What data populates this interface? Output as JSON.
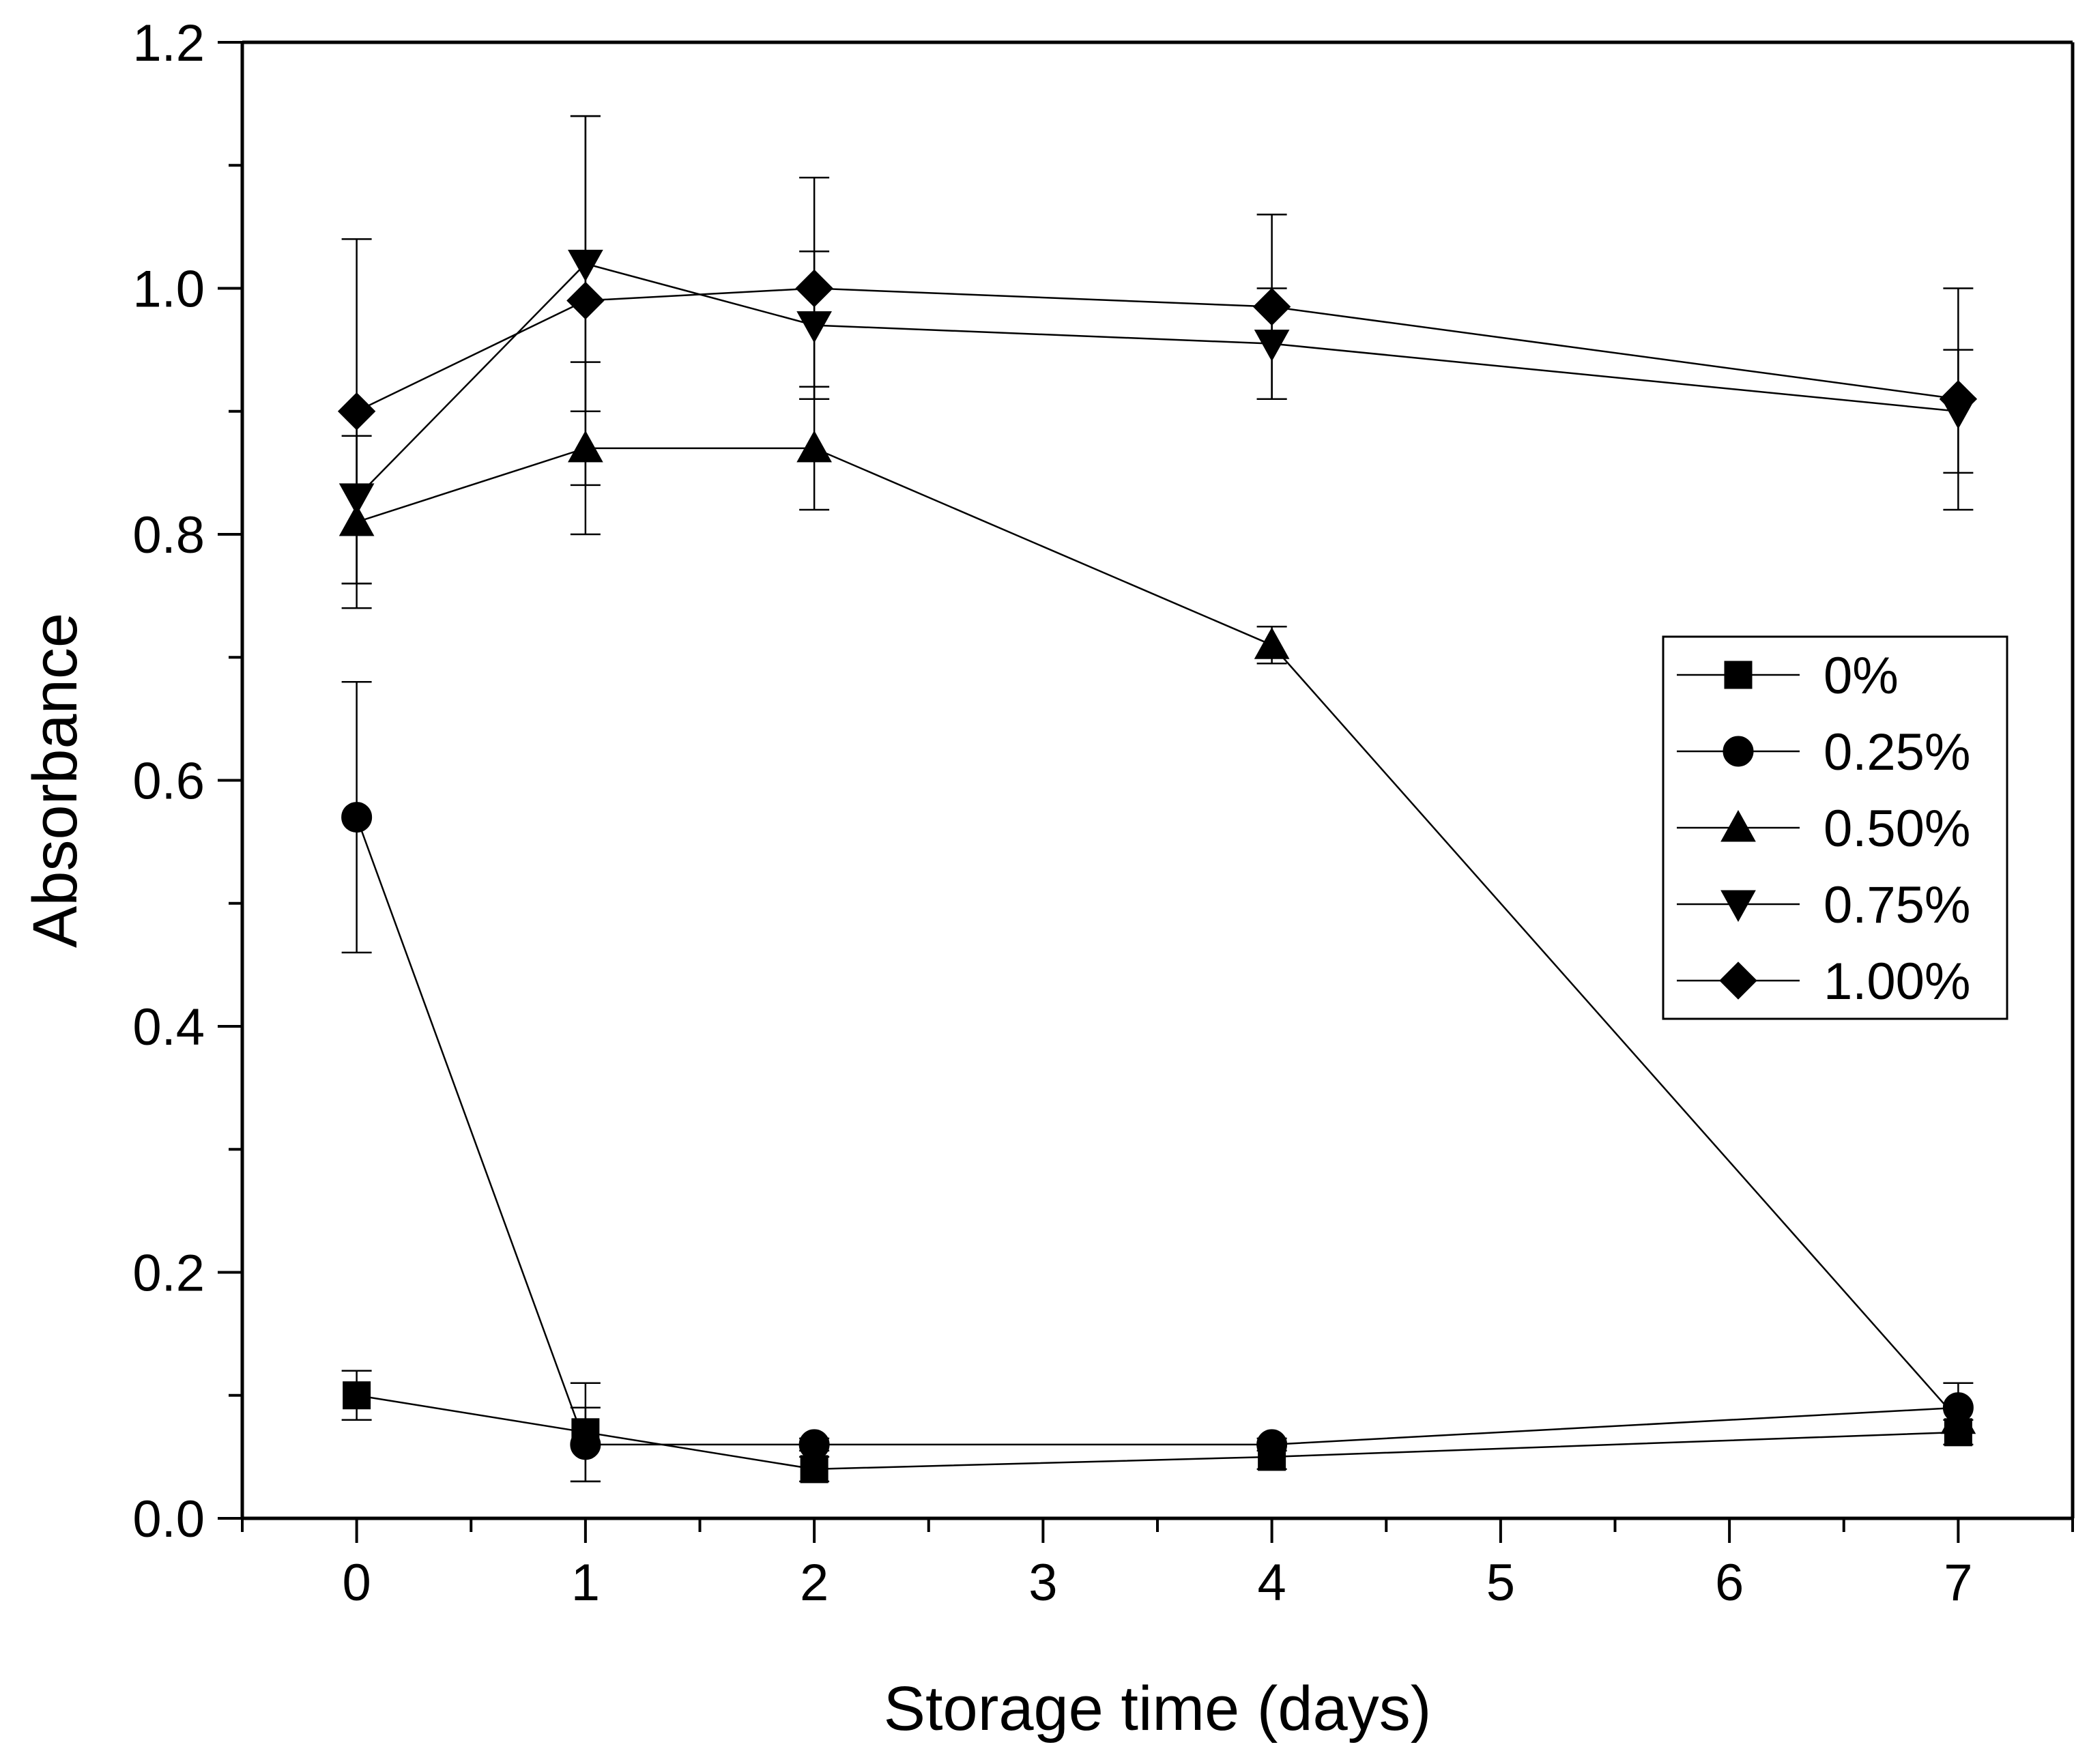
{
  "chart_data": {
    "type": "line",
    "title": "",
    "xlabel": "Storage time (days)",
    "ylabel": "Absorbance",
    "xlim": [
      -0.5,
      7.5
    ],
    "ylim": [
      0.0,
      1.2
    ],
    "x_ticks": [
      0,
      1,
      2,
      3,
      4,
      5,
      6,
      7
    ],
    "x_tick_labels": [
      "0",
      "1",
      "2",
      "3",
      "4",
      "5",
      "6",
      "7"
    ],
    "y_ticks": [
      0.0,
      0.2,
      0.4,
      0.6,
      0.8,
      1.0,
      1.2
    ],
    "y_tick_labels": [
      "0.0",
      "0.2",
      "0.4",
      "0.6",
      "0.8",
      "1.0",
      "1.2"
    ],
    "grid": false,
    "legend_position": "middle-right",
    "x": [
      0,
      1,
      2,
      4,
      7
    ],
    "series": [
      {
        "name": "0%",
        "marker": "square",
        "values": [
          0.1,
          0.07,
          0.04,
          0.05,
          0.07
        ],
        "errors": [
          0.02,
          0.04,
          0.01,
          0.01,
          0.01
        ]
      },
      {
        "name": "0.25%",
        "marker": "circle",
        "values": [
          0.57,
          0.06,
          0.06,
          0.06,
          0.09
        ],
        "errors": [
          0.11,
          0.03,
          0.005,
          0.005,
          0.02
        ]
      },
      {
        "name": "0.50%",
        "marker": "triangle-up",
        "values": [
          0.81,
          0.87,
          0.87,
          0.71,
          0.08
        ],
        "errors": [
          0.07,
          0.07,
          0.05,
          0.015,
          0.01
        ]
      },
      {
        "name": "0.75%",
        "marker": "triangle-down",
        "values": [
          0.83,
          1.02,
          0.97,
          0.955,
          0.9
        ],
        "errors": [
          0.07,
          0.12,
          0.06,
          0.045,
          0.05
        ]
      },
      {
        "name": "1.00%",
        "marker": "diamond",
        "values": [
          0.9,
          0.99,
          1.0,
          0.985,
          0.91
        ],
        "errors": [
          0.14,
          0.15,
          0.09,
          0.075,
          0.09
        ]
      }
    ]
  }
}
